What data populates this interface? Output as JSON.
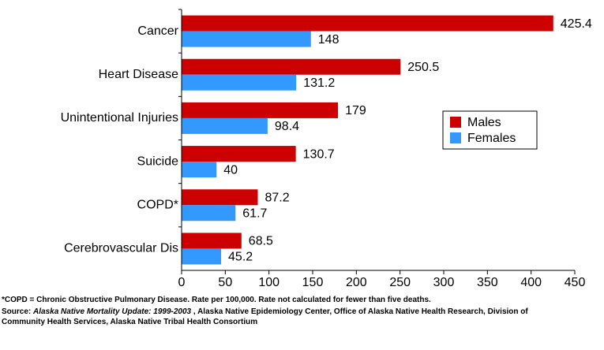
{
  "chart_data": {
    "type": "hbar",
    "categories": [
      "Cancer",
      "Heart Disease",
      "Unintentional Injuries",
      "Suicide",
      "COPD*",
      "Cerebrovascular Dis"
    ],
    "series": [
      {
        "name": "Males",
        "color": "#cc0000",
        "values": [
          425.4,
          250.5,
          179,
          130.7,
          87.2,
          68.5
        ]
      },
      {
        "name": "Females",
        "color": "#3399ff",
        "values": [
          148,
          131.2,
          98.4,
          40,
          61.7,
          45.2
        ]
      }
    ],
    "xlim": [
      0,
      450
    ],
    "xticks": [
      0,
      50,
      100,
      150,
      200,
      250,
      300,
      350,
      400,
      450
    ],
    "legend": "right",
    "grid": false
  },
  "notes": {
    "footnote": "*COPD = Chronic Obstructive Pulmonary Disease.  Rate per 100,000.  Rate not calculated for fewer than five deaths.",
    "source_label": "Source:",
    "source_title": "Alaska Native Mortality Update: 1999-2003",
    "source_rest": " , Alaska Native Epidemiology Center, Office of Alaska Native Health Research, Division of Community Health Services, Alaska Native Tribal Health Consortium"
  }
}
